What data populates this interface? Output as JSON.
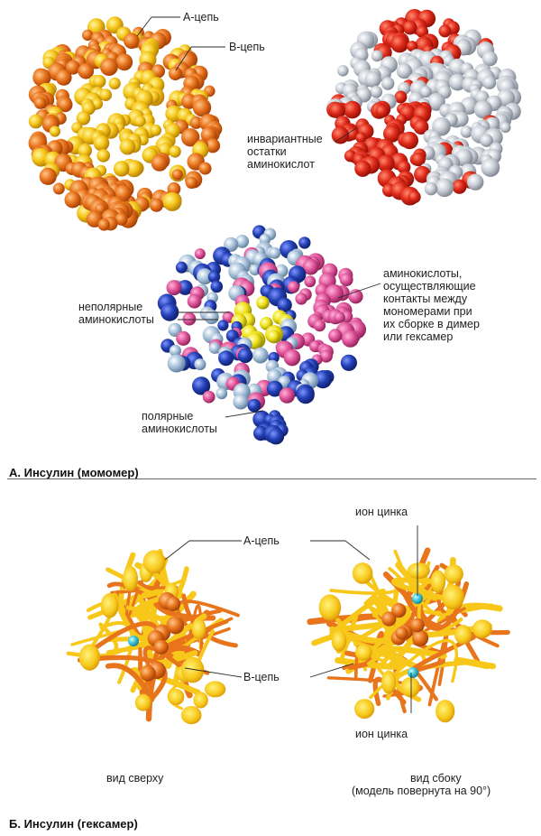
{
  "section_a": {
    "title": "А. Инсулин (момомер)",
    "monomer_left": {
      "a_chain": "А-цепь",
      "b_chain": "В-цепь"
    },
    "monomer_right": {
      "invariant": [
        "инвариантные",
        "остатки",
        "аминокислот"
      ]
    },
    "monomer_bottom": {
      "nonpolar": [
        "неполярные",
        "аминокислоты"
      ],
      "polar": [
        "полярные",
        "аминокислоты"
      ],
      "contacts": [
        "аминокислоты,",
        "осуществляющие",
        "контакты между",
        "мономерами при",
        "их сборке в димер",
        "или гексамер"
      ]
    }
  },
  "section_b": {
    "title": "Б. Инсулин (гексамер)",
    "a_chain": "А-цепь",
    "b_chain": "В-цепь",
    "zinc_ion_top": "ион цинка",
    "zinc_ion_bottom": "ион цинка",
    "top_view": "вид сверху",
    "side_view": "вид сбоку",
    "side_view_note": "(модель повернута на 90°)"
  },
  "colors": {
    "a_chain": "#f5c518",
    "b_chain": "#e8741c",
    "invariant": "#e02a1a",
    "grey": "#c9ced6",
    "polar": "#2340b5",
    "nonpolar": "#f0e21a",
    "contact": "#e0559b",
    "zinc": "#3ec5d8"
  }
}
